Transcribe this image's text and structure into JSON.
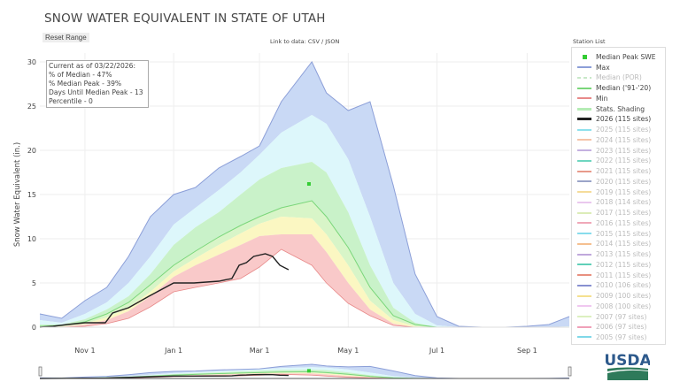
{
  "title": "SNOW WATER EQUIVALENT IN STATE OF UTAH",
  "reset_label": "Reset Range",
  "link_text": "Link to data: CSV / JSON",
  "station_list_label": "Station List",
  "info": [
    "Current as of 03/22/2026:",
    "% of Median - 47%",
    "% Median Peak - 39%",
    "Days Until Median Peak - 13",
    "Percentile - 0"
  ],
  "logo_text": "USDA",
  "legend": [
    {
      "label": "Median Peak SWE",
      "color": "#33cc33",
      "type": "marker",
      "active": true
    },
    {
      "label": "Max",
      "color": "#8c9fd8",
      "active": true
    },
    {
      "label": "Median (POR)",
      "color": "#c8e8c8",
      "active": false,
      "dash": true
    },
    {
      "label": "Median ('91-'20)",
      "color": "#7ad67a",
      "active": true
    },
    {
      "label": "Min",
      "color": "#e88a8a",
      "active": true
    },
    {
      "label": "Stats. Shading",
      "color": "#b5ecb5",
      "active": true,
      "thick": true
    },
    {
      "label": "2026 (115 sites)",
      "color": "#222222",
      "active": true,
      "thick": true
    },
    {
      "label": "2025 (115 sites)",
      "color": "#8ee0ec",
      "active": false
    },
    {
      "label": "2024 (115 sites)",
      "color": "#f5c3a8",
      "active": false
    },
    {
      "label": "2023 (115 sites)",
      "color": "#c4b0e0",
      "active": false
    },
    {
      "label": "2022 (115 sites)",
      "color": "#6fd6c0",
      "active": false
    },
    {
      "label": "2021 (115 sites)",
      "color": "#e89a8a",
      "active": false
    },
    {
      "label": "2020 (115 sites)",
      "color": "#9aa4c8",
      "active": false
    },
    {
      "label": "2019 (115 sites)",
      "color": "#f5dc9a",
      "active": false
    },
    {
      "label": "2018 (114 sites)",
      "color": "#eac8ee",
      "active": false
    },
    {
      "label": "2017 (115 sites)",
      "color": "#dcecb8",
      "active": false
    },
    {
      "label": "2016 (115 sites)",
      "color": "#f0a8b8",
      "active": false
    },
    {
      "label": "2015 (115 sites)",
      "color": "#88dcec",
      "active": false
    },
    {
      "label": "2014 (115 sites)",
      "color": "#f5c090",
      "active": false
    },
    {
      "label": "2013 (115 sites)",
      "color": "#c0a8dc",
      "active": false
    },
    {
      "label": "2012 (115 sites)",
      "color": "#60d0b8",
      "active": false
    },
    {
      "label": "2011 (115 sites)",
      "color": "#e89080",
      "active": false
    },
    {
      "label": "2010 (106 sites)",
      "color": "#8890d0",
      "active": false
    },
    {
      "label": "2009 (100 sites)",
      "color": "#f5e090",
      "active": false
    },
    {
      "label": "2008 (100 sites)",
      "color": "#f0c8f0",
      "active": false
    },
    {
      "label": "2007 (97 sites)",
      "color": "#dcf0c0",
      "active": false
    },
    {
      "label": "2006 (97 sites)",
      "color": "#f0a0b8",
      "active": false
    },
    {
      "label": "2005 (97 sites)",
      "color": "#80d8e8",
      "active": false
    }
  ],
  "chart_data": {
    "type": "area",
    "title": "SNOW WATER EQUIVALENT IN STATE OF UTAH",
    "ylabel": "Snow Water Equivalent (in.)",
    "xlabel": "",
    "ylim": [
      0,
      31
    ],
    "xlim": [
      "10-01",
      "09-30"
    ],
    "yticks": [
      0,
      5,
      10,
      15,
      20,
      25,
      30
    ],
    "xticks": [
      {
        "date": "11-01",
        "label": "Nov 1"
      },
      {
        "date": "01-01",
        "label": "Jan 1"
      },
      {
        "date": "03-01",
        "label": "Mar 1"
      },
      {
        "date": "05-01",
        "label": "May 1"
      },
      {
        "date": "07-01",
        "label": "Jul 1"
      },
      {
        "date": "09-01",
        "label": "Sep 1"
      }
    ],
    "grid": true,
    "legend_placement": "right",
    "colors": {
      "max_fill": "#c9d9f5",
      "p90_fill": "#ddf7fb",
      "p70_fill": "#c9f2c9",
      "p50_fill": "#d8f5c8",
      "p30_fill": "#fbf7c2",
      "p10_fill": "#f9c9c9",
      "max_line": "#8c9fd8",
      "median_line": "#7ad67a",
      "min_line": "#e88a8a",
      "current": "#222222",
      "marker": "#33cc33"
    },
    "dates": [
      "10-01",
      "10-16",
      "11-01",
      "11-16",
      "12-01",
      "12-16",
      "01-01",
      "01-16",
      "02-01",
      "02-16",
      "03-01",
      "03-16",
      "04-06",
      "04-16",
      "05-01",
      "05-16",
      "06-01",
      "06-16",
      "07-01",
      "07-16",
      "08-01",
      "08-17",
      "09-01",
      "09-16",
      "09-30"
    ],
    "series": {
      "max": [
        1.5,
        1.0,
        3,
        4.5,
        8,
        12.5,
        15,
        15.8,
        18,
        19.3,
        20.5,
        25.5,
        30,
        26.5,
        24.5,
        25.5,
        16,
        6,
        1.2,
        0.1,
        0,
        0,
        0.1,
        0.3,
        1.2
      ],
      "p90": [
        0.8,
        0.5,
        1.5,
        2.8,
        5,
        8,
        11.6,
        13.5,
        15.5,
        17.5,
        19.5,
        22,
        24,
        23,
        19,
        12.5,
        5,
        1.5,
        0.2,
        0,
        0,
        0,
        0,
        0,
        0.1
      ],
      "p70": [
        0.3,
        0.3,
        0.9,
        2,
        3.5,
        6,
        9.3,
        11.3,
        13,
        15,
        16.7,
        18,
        18.7,
        17.5,
        13,
        7,
        2.2,
        0.5,
        0,
        0,
        0,
        0,
        0,
        0,
        0
      ],
      "median": [
        0.1,
        0.2,
        0.6,
        1.5,
        2.8,
        4.8,
        7,
        8.6,
        10.2,
        11.5,
        12.5,
        13.5,
        14.3,
        12.5,
        9,
        4.5,
        1.3,
        0.3,
        0,
        0,
        0,
        0,
        0,
        0,
        0
      ],
      "p30": [
        0,
        0.1,
        0.4,
        1.1,
        2.2,
        4,
        6.3,
        7.8,
        9.3,
        10.6,
        11.7,
        12.5,
        12.3,
        10.5,
        7,
        3,
        0.8,
        0.1,
        0,
        0,
        0,
        0,
        0,
        0,
        0
      ],
      "p10": [
        0,
        0.05,
        0.3,
        0.8,
        1.8,
        3.5,
        5.7,
        7,
        8.2,
        9.3,
        10.3,
        10.5,
        10.5,
        8.5,
        5,
        2,
        0.4,
        0,
        0,
        0,
        0,
        0,
        0,
        0,
        0
      ],
      "min": [
        0,
        0,
        0.1,
        0.4,
        1,
        2.3,
        4,
        4.5,
        5,
        5.5,
        6.8,
        8.8,
        7,
        5,
        2.7,
        1.3,
        0.2,
        0,
        0,
        0,
        0,
        0,
        0,
        0,
        0
      ]
    },
    "current": {
      "name": "2026 (115 sites)",
      "dates": [
        "10-01",
        "10-10",
        "10-20",
        "11-01",
        "11-15",
        "11-20",
        "12-01",
        "12-15",
        "01-01",
        "01-15",
        "02-01",
        "02-10",
        "02-15",
        "02-20",
        "02-25",
        "03-05",
        "03-10",
        "03-15",
        "03-21"
      ],
      "values": [
        0,
        0.1,
        0.3,
        0.5,
        0.5,
        1.6,
        2.2,
        3.5,
        5,
        5,
        5.2,
        5.5,
        7,
        7.3,
        8,
        8.3,
        8,
        7,
        6.5
      ]
    },
    "median_peak": {
      "date": "04-04",
      "value": 16.2
    }
  }
}
